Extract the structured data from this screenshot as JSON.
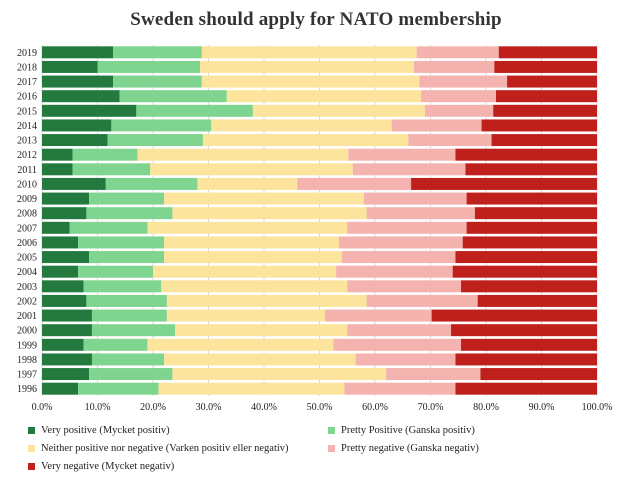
{
  "chart_data": {
    "type": "bar",
    "orientation": "horizontal",
    "stacked": "percent",
    "title": "Sweden should apply for NATO membership",
    "categories": [
      "2019",
      "2018",
      "2017",
      "2016",
      "2015",
      "2014",
      "2013",
      "2012",
      "2011",
      "2010",
      "2009",
      "2008",
      "2007",
      "2006",
      "2005",
      "2004",
      "2003",
      "2002",
      "2001",
      "2000",
      "1999",
      "1998",
      "1997",
      "1996"
    ],
    "xlim": [
      0,
      100
    ],
    "xticks": [
      "0.0%",
      "10.0%",
      "20.0%",
      "30.0%",
      "40.0%",
      "50.0%",
      "60.0%",
      "70.0%",
      "80.0%",
      "90.0%",
      "100.0%"
    ],
    "grid": true,
    "legend_position": "bottom",
    "series": [
      {
        "name": "Very positive (Mycket positiv)",
        "color": "#247a3e",
        "values": [
          12.8,
          10.0,
          12.8,
          14.0,
          17.0,
          12.5,
          11.8,
          5.5,
          5.5,
          11.5,
          8.5,
          8.0,
          5.0,
          6.5,
          8.5,
          6.5,
          7.5,
          8.0,
          9.0,
          9.0,
          7.5,
          9.0,
          8.5,
          6.5
        ]
      },
      {
        "name": "Pretty Positive (Ganska positiv)",
        "color": "#7fd48f",
        "values": [
          16.0,
          18.5,
          16.0,
          19.3,
          21.0,
          18.0,
          17.2,
          11.7,
          14.0,
          16.5,
          13.5,
          15.5,
          14.0,
          15.5,
          13.5,
          13.5,
          14.0,
          14.5,
          13.5,
          15.0,
          11.5,
          13.0,
          15.0,
          14.5
        ]
      },
      {
        "name": "Neither positive nor negative (Varken positiv eller negativ)",
        "color": "#fde49c",
        "values": [
          38.7,
          38.5,
          39.2,
          35.0,
          31.0,
          32.5,
          37.0,
          38.0,
          36.5,
          18.0,
          36.0,
          35.0,
          36.0,
          31.5,
          32.0,
          33.0,
          33.5,
          36.0,
          28.5,
          31.0,
          33.5,
          34.5,
          38.5,
          33.5
        ]
      },
      {
        "name": "Pretty negative (Ganska negativ)",
        "color": "#f4b3ae",
        "values": [
          14.8,
          14.5,
          15.8,
          13.5,
          12.3,
          16.2,
          15.0,
          19.3,
          20.3,
          20.5,
          18.5,
          19.5,
          21.5,
          22.3,
          20.5,
          21.0,
          20.5,
          20.0,
          19.2,
          18.7,
          23.0,
          18.0,
          17.0,
          20.0
        ]
      },
      {
        "name": "Very negative (Mycket negativ)",
        "color": "#c0201b",
        "values": [
          17.7,
          18.5,
          16.2,
          18.2,
          18.7,
          20.8,
          19.0,
          25.5,
          23.7,
          33.5,
          23.5,
          22.0,
          23.5,
          24.2,
          25.5,
          26.0,
          24.5,
          21.5,
          29.8,
          26.3,
          24.5,
          25.5,
          21.0,
          25.5
        ]
      }
    ]
  }
}
